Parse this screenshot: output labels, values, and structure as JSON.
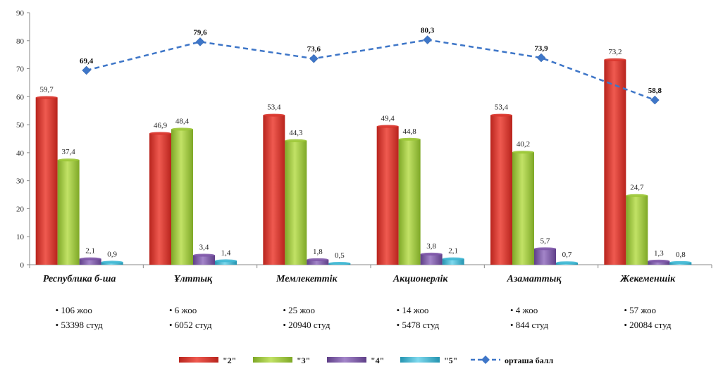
{
  "chart_data": {
    "type": "bar",
    "categories": [
      "Республика б-ша",
      "Ұлттық",
      "Мемлекеттік",
      "Акционерлік",
      "Азаматтық",
      "Жекеменшік"
    ],
    "sub_labels": [
      [
        "• 106 жоо",
        "• 53398 студ"
      ],
      [
        "• 6 жоо",
        "• 6052 студ"
      ],
      [
        "• 25 жоо",
        "• 20940 студ"
      ],
      [
        "• 14 жоо",
        "• 5478 студ"
      ],
      [
        "• 4 жоо",
        "• 844 студ"
      ],
      [
        "• 57 жоо",
        "• 20084 студ"
      ]
    ],
    "series": [
      {
        "name": "\"2\"",
        "type": "bar",
        "color": "#d9342b",
        "values": [
          59.7,
          46.9,
          53.4,
          49.4,
          53.4,
          73.2
        ],
        "labels": [
          "59,7",
          "46,9",
          "53,4",
          "49,4",
          "53,4",
          "73,2"
        ]
      },
      {
        "name": "\"3\"",
        "type": "bar",
        "color": "#9bc736",
        "values": [
          37.4,
          48.4,
          44.3,
          44.8,
          40.2,
          24.7
        ],
        "labels": [
          "37,4",
          "48,4",
          "44,3",
          "44,8",
          "40,2",
          "24,7"
        ]
      },
      {
        "name": "\"4\"",
        "type": "bar",
        "color": "#7e57a8",
        "values": [
          2.1,
          3.4,
          1.8,
          3.8,
          5.7,
          1.3
        ],
        "labels": [
          "2,1",
          "3,4",
          "1,8",
          "3,8",
          "5,7",
          "1,3"
        ]
      },
      {
        "name": "\"5\"",
        "type": "bar",
        "color": "#3fb8d4",
        "values": [
          0.9,
          1.4,
          0.5,
          2.1,
          0.7,
          0.8
        ],
        "labels": [
          "0,9",
          "1,4",
          "0,5",
          "2,1",
          "0,7",
          "0,8"
        ]
      },
      {
        "name": "орташа балл",
        "type": "line",
        "color": "#3e76c8",
        "values": [
          69.4,
          79.6,
          73.6,
          80.3,
          73.9,
          58.8
        ],
        "labels": [
          "69,4",
          "79,6",
          "73,6",
          "80,3",
          "73,9",
          "58,8"
        ]
      }
    ],
    "ylim": [
      0,
      90
    ],
    "yticks": [
      0,
      10,
      20,
      30,
      40,
      50,
      60,
      70,
      80,
      90
    ],
    "grid": false,
    "legend_position": "bottom"
  }
}
